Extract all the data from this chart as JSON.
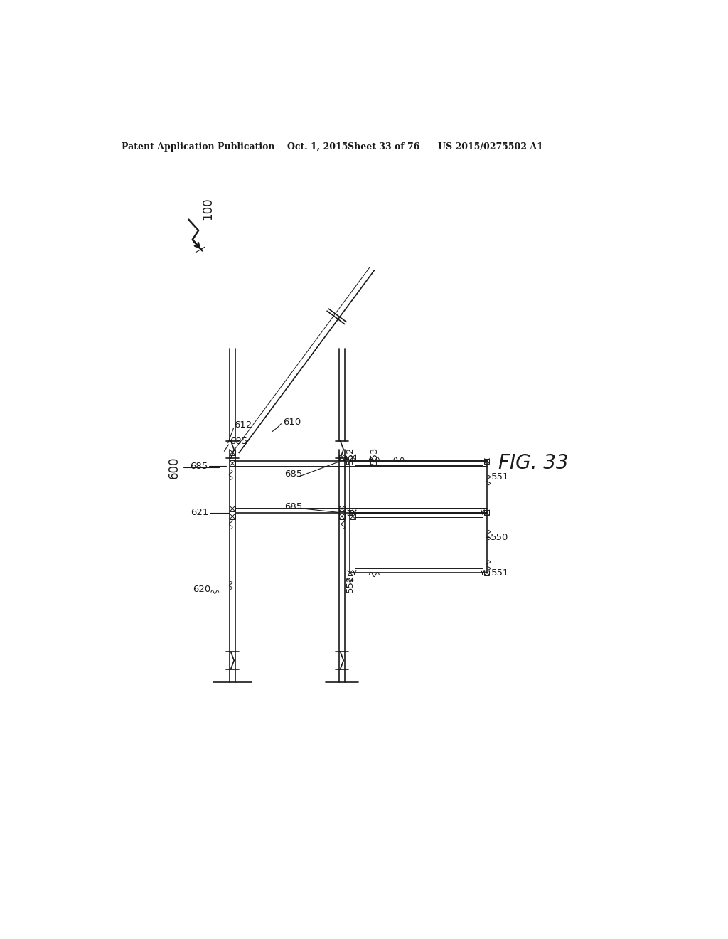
{
  "background_color": "#ffffff",
  "line_color": "#1a1a1a",
  "header_text": "Patent Application Publication",
  "header_date": "Oct. 1, 2015",
  "header_sheet": "Sheet 33 of 76",
  "header_patent": "US 2015/0275502 A1",
  "fig_label": "FIG. 33"
}
